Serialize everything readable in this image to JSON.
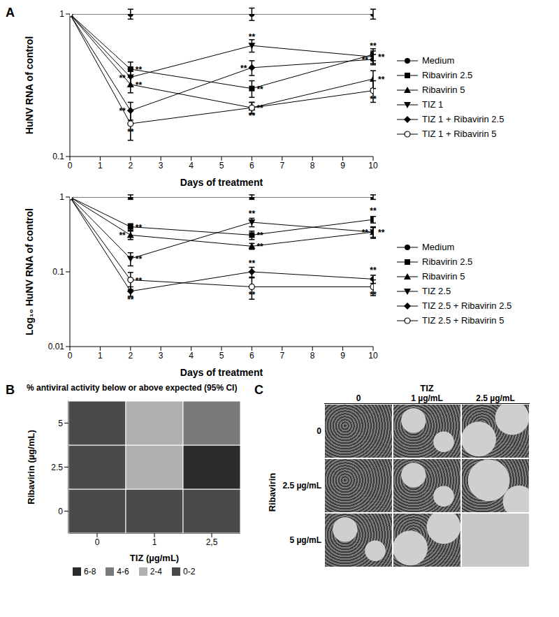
{
  "panel_labels": [
    "A",
    "B",
    "C"
  ],
  "chart_data": [
    {
      "type": "line",
      "x_label": "Days of treatment",
      "y_label": "HuNV RNA of control",
      "x": [
        0,
        2,
        6,
        10
      ],
      "xlim": [
        0,
        10
      ],
      "xticks": [
        0,
        1,
        2,
        3,
        4,
        5,
        6,
        7,
        8,
        9,
        10
      ],
      "ylim": [
        0.1,
        1
      ],
      "yticks": [
        0.1,
        1
      ],
      "log": "y",
      "grid": false,
      "legend": "right",
      "series": [
        {
          "name": "Medium",
          "color": "#000000",
          "marker": "circle",
          "values": [
            1,
            1,
            1,
            1
          ],
          "errors": [
            0,
            0.08,
            0.1,
            0.08
          ],
          "annotations": [
            null,
            null,
            null,
            null
          ]
        },
        {
          "name": "Ribavirin 2.5",
          "color": "#000000",
          "marker": "square",
          "values": [
            1,
            0.41,
            0.3,
            0.52
          ],
          "errors": [
            0,
            0.05,
            0.04,
            0.05
          ],
          "annotations": [
            null,
            "**",
            "**",
            "**"
          ]
        },
        {
          "name": "Ribavirin 5",
          "color": "#000000",
          "marker": "triangle",
          "values": [
            1,
            0.32,
            0.22,
            0.35
          ],
          "errors": [
            0,
            0.04,
            0.02,
            0.05
          ],
          "annotations": [
            null,
            "**",
            "**",
            "**"
          ]
        },
        {
          "name": "TIZ 1",
          "color": "#000000",
          "marker": "triangle_down",
          "values": [
            1,
            0.36,
            0.6,
            0.5
          ],
          "errors": [
            0,
            0.05,
            0.06,
            0.05
          ],
          "annotations": [
            null,
            "**",
            "**",
            "**"
          ]
        },
        {
          "name": "TIZ 1 + Ribavirin 2.5",
          "color": "#000000",
          "marker": "diamond",
          "values": [
            1,
            0.21,
            0.42,
            0.48
          ],
          "errors": [
            0,
            0.03,
            0.05,
            0.04
          ],
          "annotations": [
            null,
            "**",
            "**",
            "**"
          ]
        },
        {
          "name": "TIZ 1 + Ribavirin 5",
          "color": "#000000",
          "marker": "circle_open",
          "values": [
            1,
            0.17,
            0.22,
            0.29
          ],
          "errors": [
            0,
            0.04,
            0.02,
            0.05
          ],
          "annotations": [
            null,
            "**",
            "**",
            "**"
          ]
        }
      ]
    },
    {
      "type": "line",
      "x_label": "Days of treatment",
      "y_label": "Log₁₀ HuNV RNA of control",
      "x": [
        0,
        2,
        6,
        10
      ],
      "xlim": [
        0,
        10
      ],
      "xticks": [
        0,
        1,
        2,
        3,
        4,
        5,
        6,
        7,
        8,
        9,
        10
      ],
      "ylim": [
        0.01,
        1
      ],
      "yticks": [
        0.01,
        0.1,
        1
      ],
      "log": "y",
      "grid": false,
      "legend": "right",
      "series": [
        {
          "name": "Medium",
          "color": "#000000",
          "marker": "circle",
          "values": [
            1,
            1,
            1,
            1
          ],
          "errors": [
            0,
            0.07,
            0.07,
            0.07
          ],
          "annotations": [
            null,
            null,
            null,
            null
          ]
        },
        {
          "name": "Ribavirin 2.5",
          "color": "#000000",
          "marker": "square",
          "values": [
            1,
            0.4,
            0.31,
            0.5
          ],
          "errors": [
            0,
            0.04,
            0.04,
            0.05
          ],
          "annotations": [
            null,
            "**",
            "**",
            "**"
          ]
        },
        {
          "name": "Ribavirin 5",
          "color": "#000000",
          "marker": "triangle",
          "values": [
            1,
            0.31,
            0.22,
            0.34
          ],
          "errors": [
            0,
            0.04,
            0.02,
            0.05
          ],
          "annotations": [
            null,
            "**",
            "**",
            "**"
          ]
        },
        {
          "name": "TIZ 2.5",
          "color": "#000000",
          "marker": "triangle_down",
          "values": [
            1,
            0.15,
            0.46,
            0.34
          ],
          "errors": [
            0,
            0.03,
            0.06,
            0.06
          ],
          "annotations": [
            null,
            "**",
            "**",
            "**"
          ]
        },
        {
          "name": "TIZ 2.5 + Ribavirin 2.5",
          "color": "#000000",
          "marker": "diamond",
          "values": [
            1,
            0.055,
            0.1,
            0.08
          ],
          "errors": [
            0,
            0.008,
            0.015,
            0.01
          ],
          "annotations": [
            null,
            "**",
            "**",
            "**"
          ]
        },
        {
          "name": "TIZ 2.5 + Ribavirin 5",
          "color": "#000000",
          "marker": "circle_open",
          "values": [
            1,
            0.078,
            0.063,
            0.063
          ],
          "errors": [
            0,
            0.02,
            0.02,
            0.015
          ],
          "annotations": [
            null,
            "**",
            "**",
            "**"
          ]
        }
      ]
    },
    {
      "type": "heatmap",
      "title": "% antiviral activity below or above expected (95% CI)",
      "x_label": "TIZ (µg/mL)",
      "y_label": "Ribavirin (µg/mL)",
      "categories": [
        "0",
        "1",
        "2,5"
      ],
      "y_categories": [
        "0",
        "2.5",
        "5"
      ],
      "cells": [
        [
          0,
          0,
          0
        ],
        [
          0,
          2,
          7
        ],
        [
          0,
          3,
          4
        ]
      ],
      "color_bins": [
        0,
        2,
        4,
        6,
        8
      ],
      "colors": [
        "#4a4a4a",
        "#b0b0b0",
        "#7a7a7a",
        "#2b2b2b"
      ],
      "color_labels": [
        "0-2",
        "2-4",
        "4-6",
        "6-8"
      ]
    }
  ],
  "panel_c": {
    "column_header": "TIZ",
    "columns": [
      "0",
      "1 µg/mL",
      "2.5 µg/mL"
    ],
    "row_header": "Ribavirin",
    "rows": [
      "0",
      "2.5 µg/mL",
      "5 µg/mL"
    ]
  }
}
